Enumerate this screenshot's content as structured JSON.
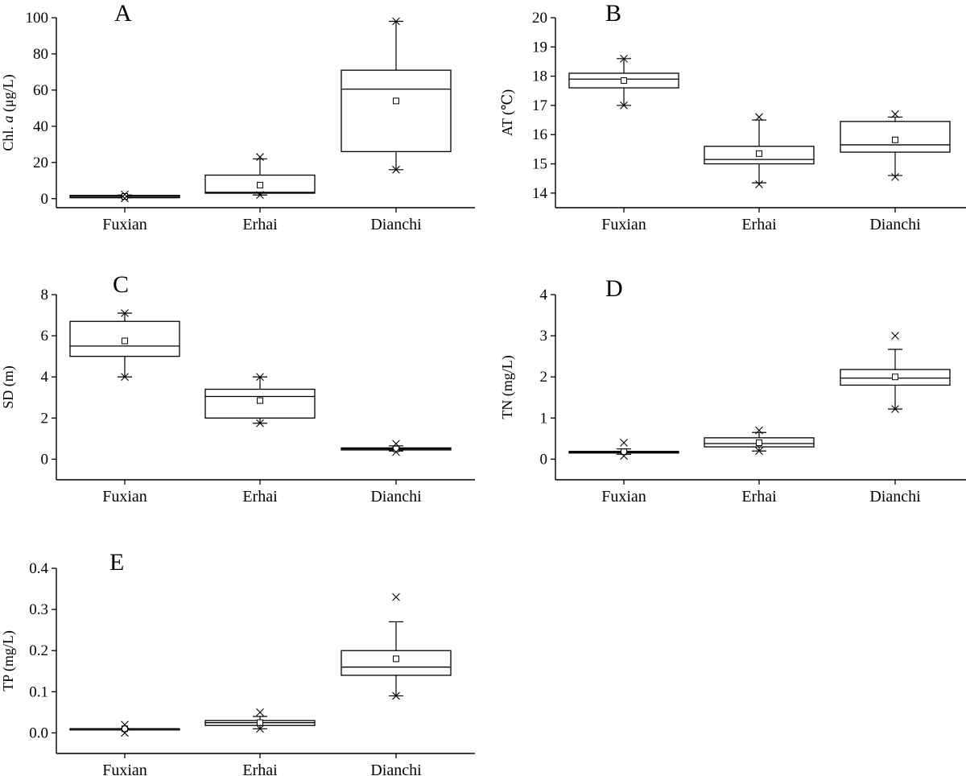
{
  "figure": {
    "categories": [
      "Fuxian",
      "Erhai",
      "Dianchi"
    ]
  },
  "chart_data": [
    {
      "type": "box",
      "panel": "A",
      "ylabel_prefix": "Chl. ",
      "ylabel_italic": "a",
      "ylabel_suffix": " (μg/L)",
      "ylim": [
        -5,
        100
      ],
      "yticks": [
        "0",
        "20",
        "40",
        "60",
        "80",
        "100"
      ],
      "ytick_values": [
        0,
        20,
        40,
        60,
        80,
        100
      ],
      "boxes": [
        {
          "category": "Fuxian",
          "q1": 0.5,
          "median": 1.2,
          "q3": 1.8,
          "mean": 1.2,
          "whisker_low": 0.5,
          "whisker_high": 2.0,
          "min": 0.2,
          "max": 2.3
        },
        {
          "category": "Erhai",
          "q1": 3,
          "median": 3.5,
          "q3": 13,
          "mean": 7.5,
          "whisker_low": 2,
          "whisker_high": 22,
          "min": 2,
          "max": 23
        },
        {
          "category": "Dianchi",
          "q1": 26,
          "median": 60.5,
          "q3": 71,
          "mean": 54,
          "whisker_low": 16,
          "whisker_high": 98,
          "min": 16,
          "max": 98
        }
      ]
    },
    {
      "type": "box",
      "panel": "B",
      "ylabel_prefix": "AT (",
      "ylabel_italic": "",
      "ylabel_suffix": "℃)",
      "ylim": [
        13.5,
        20
      ],
      "yticks": [
        "14",
        "15",
        "16",
        "17",
        "18",
        "19",
        "20"
      ],
      "ytick_values": [
        14,
        15,
        16,
        17,
        18,
        19,
        20
      ],
      "boxes": [
        {
          "category": "Fuxian",
          "q1": 17.6,
          "median": 17.9,
          "q3": 18.1,
          "mean": 17.85,
          "whisker_low": 17.0,
          "whisker_high": 18.6,
          "min": 17.0,
          "max": 18.6
        },
        {
          "category": "Erhai",
          "q1": 15.0,
          "median": 15.15,
          "q3": 15.6,
          "mean": 15.35,
          "whisker_low": 14.35,
          "whisker_high": 16.5,
          "min": 14.3,
          "max": 16.6
        },
        {
          "category": "Dianchi",
          "q1": 15.4,
          "median": 15.65,
          "q3": 16.45,
          "mean": 15.82,
          "whisker_low": 14.6,
          "whisker_high": 16.6,
          "min": 14.55,
          "max": 16.7
        }
      ]
    },
    {
      "type": "box",
      "panel": "C",
      "ylabel_prefix": "SD (m)",
      "ylabel_italic": "",
      "ylabel_suffix": "",
      "ylim": [
        -1,
        8
      ],
      "yticks": [
        "0",
        "2",
        "4",
        "6",
        "8"
      ],
      "ytick_values": [
        0,
        2,
        4,
        6,
        8
      ],
      "boxes": [
        {
          "category": "Fuxian",
          "q1": 5.0,
          "median": 5.5,
          "q3": 6.7,
          "mean": 5.75,
          "whisker_low": 4.0,
          "whisker_high": 7.1,
          "min": 4.0,
          "max": 7.1
        },
        {
          "category": "Erhai",
          "q1": 2.0,
          "median": 3.05,
          "q3": 3.4,
          "mean": 2.85,
          "whisker_low": 1.75,
          "whisker_high": 4.0,
          "min": 1.75,
          "max": 4.0
        },
        {
          "category": "Dianchi",
          "q1": 0.45,
          "median": 0.5,
          "q3": 0.55,
          "mean": 0.5,
          "whisker_low": 0.4,
          "whisker_high": 0.65,
          "min": 0.35,
          "max": 0.75
        }
      ]
    },
    {
      "type": "box",
      "panel": "D",
      "ylabel_prefix": "TN (mg/L)",
      "ylabel_italic": "",
      "ylabel_suffix": "",
      "ylim": [
        -0.5,
        4
      ],
      "yticks": [
        "0",
        "1",
        "2",
        "3",
        "4"
      ],
      "ytick_values": [
        0,
        1,
        2,
        3,
        4
      ],
      "boxes": [
        {
          "category": "Fuxian",
          "q1": 0.15,
          "median": 0.17,
          "q3": 0.19,
          "mean": 0.18,
          "whisker_low": 0.12,
          "whisker_high": 0.25,
          "min": 0.08,
          "max": 0.4
        },
        {
          "category": "Erhai",
          "q1": 0.3,
          "median": 0.38,
          "q3": 0.52,
          "mean": 0.4,
          "whisker_low": 0.2,
          "whisker_high": 0.65,
          "min": 0.2,
          "max": 0.7
        },
        {
          "category": "Dianchi",
          "q1": 1.8,
          "median": 1.97,
          "q3": 2.18,
          "mean": 2.0,
          "whisker_low": 1.22,
          "whisker_high": 2.67,
          "min": 1.22,
          "max": 3.0
        }
      ]
    },
    {
      "type": "box",
      "panel": "E",
      "ylabel_prefix": "TP (mg/L)",
      "ylabel_italic": "",
      "ylabel_suffix": "",
      "ylim": [
        -0.05,
        0.4
      ],
      "yticks": [
        "0.0",
        "0.1",
        "0.2",
        "0.3",
        "0.4"
      ],
      "ytick_values": [
        0,
        0.1,
        0.2,
        0.3,
        0.4
      ],
      "boxes": [
        {
          "category": "Fuxian",
          "q1": 0.01,
          "median": 0.01,
          "q3": 0.01,
          "mean": 0.01,
          "whisker_low": 0.01,
          "whisker_high": 0.01,
          "min": 0.0,
          "max": 0.02
        },
        {
          "category": "Erhai",
          "q1": 0.018,
          "median": 0.025,
          "q3": 0.03,
          "mean": 0.025,
          "whisker_low": 0.01,
          "whisker_high": 0.04,
          "min": 0.01,
          "max": 0.05
        },
        {
          "category": "Dianchi",
          "q1": 0.14,
          "median": 0.16,
          "q3": 0.2,
          "mean": 0.18,
          "whisker_low": 0.09,
          "whisker_high": 0.27,
          "min": 0.09,
          "max": 0.33
        }
      ]
    }
  ]
}
